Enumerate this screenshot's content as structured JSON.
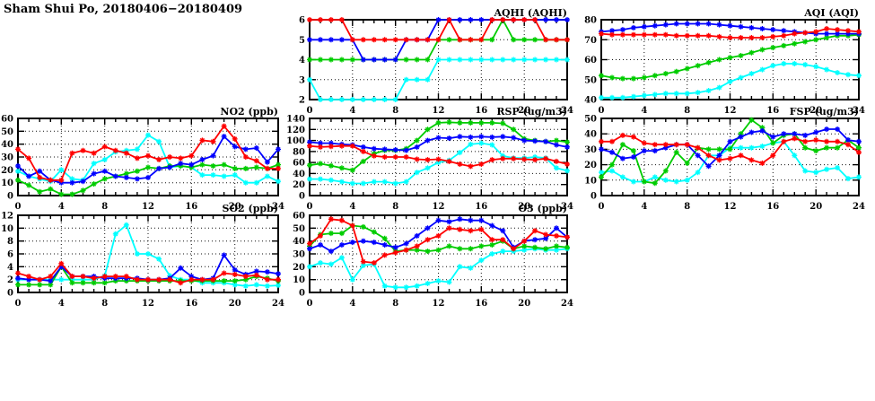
{
  "page_title": "Sham Shui Po, 20180406−20180409",
  "chart_data": [
    {
      "id": "aqhi",
      "type": "line",
      "title": "AQHI (AQHI)",
      "xlabel": "",
      "ylabel": "",
      "grid": true,
      "legend": "none",
      "xlim": [
        0,
        24
      ],
      "x_ticks": [
        0,
        4,
        8,
        12,
        16,
        20,
        24
      ],
      "ylim": [
        2,
        6
      ],
      "y_ticks": [
        2,
        3,
        4,
        5,
        6
      ],
      "x_start": 0,
      "x_step": 1,
      "series": [
        {
          "name": "red",
          "color": "#ff0000",
          "values": [
            6,
            6,
            6,
            6,
            5,
            5,
            5,
            5,
            5,
            5,
            5,
            5,
            5,
            6,
            5,
            5,
            5,
            6,
            6,
            6,
            6,
            6,
            5,
            5,
            5
          ]
        },
        {
          "name": "blue",
          "color": "#0000ff",
          "values": [
            5,
            5,
            5,
            5,
            5,
            4,
            4,
            4,
            4,
            5,
            5,
            5,
            6,
            6,
            6,
            6,
            6,
            6,
            6,
            6,
            6,
            6,
            6,
            6,
            6
          ]
        },
        {
          "name": "green",
          "color": "#00cc00",
          "values": [
            4,
            4,
            4,
            4,
            4,
            4,
            4,
            4,
            4,
            4,
            4,
            4,
            5,
            5,
            5,
            5,
            5,
            5,
            6,
            5,
            5,
            5,
            5,
            5,
            5
          ]
        },
        {
          "name": "cyan",
          "color": "#00ffff",
          "values": [
            3,
            2,
            2,
            2,
            2,
            2,
            2,
            2,
            2,
            3,
            3,
            3,
            4,
            4,
            4,
            4,
            4,
            4,
            4,
            4,
            4,
            4,
            4,
            4,
            4
          ]
        }
      ]
    },
    {
      "id": "aqi",
      "type": "line",
      "title": "AQI (AQI)",
      "xlabel": "",
      "ylabel": "",
      "grid": true,
      "legend": "none",
      "xlim": [
        0,
        24
      ],
      "x_ticks": [
        0,
        4,
        8,
        12,
        16,
        20,
        24
      ],
      "ylim": [
        40,
        80
      ],
      "y_ticks": [
        40,
        50,
        60,
        70,
        80
      ],
      "x_start": 0,
      "x_step": 1,
      "series": [
        {
          "name": "red",
          "color": "#ff0000",
          "values": [
            73,
            72.5,
            72.5,
            72.5,
            72.5,
            72.5,
            72.5,
            72,
            72,
            72,
            72,
            71.5,
            71,
            71,
            71,
            71,
            71.5,
            72,
            73,
            73.5,
            74,
            75.5,
            75,
            74.5,
            74
          ]
        },
        {
          "name": "blue",
          "color": "#0000ff",
          "values": [
            74,
            74.5,
            75,
            76,
            76.5,
            77,
            77.5,
            78,
            78,
            78,
            78,
            77.5,
            77,
            76.5,
            76,
            75.5,
            75,
            74.5,
            74,
            73.5,
            73,
            73,
            73,
            73,
            73
          ]
        },
        {
          "name": "green",
          "color": "#00cc00",
          "values": [
            52,
            51,
            50.5,
            50.5,
            51,
            52,
            53,
            54,
            55.5,
            57,
            58.5,
            60,
            61,
            62,
            63.5,
            65,
            66,
            67,
            68,
            69,
            70,
            71,
            72,
            72,
            72.5
          ]
        },
        {
          "name": "cyan",
          "color": "#00ffff",
          "values": [
            41,
            41,
            41,
            41.5,
            42,
            42.5,
            43,
            43,
            43,
            43.5,
            44.5,
            46,
            49,
            51,
            53,
            55,
            57,
            58,
            58,
            57.5,
            56.5,
            55,
            53.5,
            52.5,
            52
          ]
        }
      ]
    },
    {
      "id": "no2",
      "type": "line",
      "title": "NO2 (ppb)",
      "xlabel": "",
      "ylabel": "",
      "grid": true,
      "legend": "none",
      "xlim": [
        0,
        24
      ],
      "x_ticks": [
        0,
        4,
        8,
        12,
        16,
        20,
        24
      ],
      "ylim": [
        0,
        60
      ],
      "y_ticks": [
        0,
        10,
        20,
        30,
        40,
        50,
        60
      ],
      "x_start": 0,
      "x_step": 1,
      "series": [
        {
          "name": "red",
          "color": "#ff0000",
          "values": [
            36,
            29,
            14,
            12,
            12,
            33,
            35,
            33,
            38,
            35,
            33,
            29,
            31,
            28,
            30,
            29,
            31,
            43,
            42,
            54,
            44,
            30,
            27,
            21,
            21
          ]
        },
        {
          "name": "blue",
          "color": "#0000ff",
          "values": [
            23,
            15,
            19,
            12,
            10,
            10,
            11,
            17,
            19,
            15,
            14,
            13,
            14,
            21,
            22,
            25,
            24,
            28,
            31,
            46,
            38,
            36,
            37,
            26,
            36
          ]
        },
        {
          "name": "green",
          "color": "#00cc00",
          "values": [
            12,
            8,
            3,
            5,
            1,
            1,
            4,
            9,
            13,
            15,
            17,
            19,
            22,
            21,
            23,
            23,
            22,
            24,
            23,
            24,
            21,
            21,
            22,
            21,
            24
          ]
        },
        {
          "name": "cyan",
          "color": "#00ffff",
          "values": [
            19,
            15,
            13,
            11,
            20,
            13,
            12,
            25,
            28,
            34,
            35,
            36,
            47,
            42,
            22,
            23,
            22,
            16,
            16,
            15,
            16,
            10,
            10,
            15,
            11
          ]
        }
      ]
    },
    {
      "id": "rsp",
      "type": "line",
      "title": "RSP (ug/m3)",
      "xlabel": "",
      "ylabel": "",
      "grid": true,
      "legend": "none",
      "xlim": [
        0,
        24
      ],
      "x_ticks": [
        0,
        4,
        8,
        12,
        16,
        20,
        24
      ],
      "ylim": [
        0,
        140
      ],
      "y_ticks": [
        0,
        20,
        40,
        60,
        80,
        100,
        120,
        140
      ],
      "x_start": 0,
      "x_step": 1,
      "series": [
        {
          "name": "red",
          "color": "#ff0000",
          "values": [
            90,
            88,
            89,
            90,
            90,
            80,
            72,
            70,
            70,
            70,
            66,
            65,
            66,
            62,
            57,
            53,
            57,
            65,
            67,
            67,
            66,
            65,
            67,
            62,
            57
          ]
        },
        {
          "name": "blue",
          "color": "#0000ff",
          "values": [
            97,
            95,
            95,
            93,
            92,
            88,
            85,
            84,
            83,
            82,
            88,
            100,
            105,
            104,
            107,
            106,
            107,
            106,
            107,
            105,
            100,
            99,
            98,
            92,
            88
          ]
        },
        {
          "name": "green",
          "color": "#00cc00",
          "values": [
            55,
            58,
            54,
            50,
            46,
            62,
            76,
            82,
            82,
            85,
            100,
            120,
            132,
            133,
            132,
            132,
            132,
            132,
            131,
            120,
            103,
            100,
            98,
            100,
            97
          ]
        },
        {
          "name": "cyan",
          "color": "#00ffff",
          "values": [
            30,
            30,
            28,
            25,
            22,
            22,
            25,
            25,
            22,
            25,
            42,
            50,
            60,
            64,
            78,
            93,
            95,
            92,
            72,
            68,
            68,
            70,
            68,
            50,
            45
          ]
        }
      ]
    },
    {
      "id": "fsp",
      "type": "line",
      "title": "FSP (ug/m3)",
      "xlabel": "",
      "ylabel": "",
      "grid": true,
      "legend": "none",
      "xlim": [
        0,
        24
      ],
      "x_ticks": [
        0,
        4,
        8,
        12,
        16,
        20,
        24
      ],
      "ylim": [
        0,
        50
      ],
      "y_ticks": [
        0,
        10,
        20,
        30,
        40,
        50
      ],
      "x_start": 0,
      "x_step": 1,
      "series": [
        {
          "name": "red",
          "color": "#ff0000",
          "values": [
            35,
            35,
            39,
            38,
            34,
            33,
            33,
            33,
            33,
            31,
            26,
            23,
            24,
            26,
            23,
            21,
            26,
            35,
            37,
            35,
            36,
            35,
            35,
            33,
            28
          ]
        },
        {
          "name": "blue",
          "color": "#0000ff",
          "values": [
            30,
            28,
            24,
            25,
            29,
            29,
            31,
            33,
            33,
            26,
            19,
            26,
            35,
            38,
            41,
            42,
            38,
            40,
            40,
            39,
            41,
            43,
            43,
            36,
            35
          ]
        },
        {
          "name": "green",
          "color": "#00cc00",
          "values": [
            12,
            20,
            33,
            29,
            9,
            8,
            16,
            28,
            21,
            31,
            30,
            30,
            30,
            40,
            49,
            44,
            34,
            39,
            40,
            31,
            29,
            31,
            31,
            36,
            31
          ]
        },
        {
          "name": "cyan",
          "color": "#00ffff",
          "values": [
            15,
            16,
            12,
            9,
            9,
            12,
            10,
            9,
            10,
            15,
            26,
            26,
            31,
            31,
            31,
            32,
            34,
            35,
            26,
            16,
            15,
            17,
            18,
            11,
            12
          ]
        }
      ]
    },
    {
      "id": "so2",
      "type": "line",
      "title": "SO2 (ppb)",
      "xlabel": "",
      "ylabel": "",
      "grid": true,
      "legend": "none",
      "xlim": [
        0,
        24
      ],
      "x_ticks": [
        0,
        4,
        8,
        12,
        16,
        20,
        24
      ],
      "ylim": [
        0,
        12
      ],
      "y_ticks": [
        0,
        2,
        4,
        6,
        8,
        10,
        12
      ],
      "x_start": 0,
      "x_step": 1,
      "series": [
        {
          "name": "red",
          "color": "#ff0000",
          "values": [
            3,
            2.5,
            2,
            2.5,
            4.5,
            2.5,
            2.5,
            2.2,
            2.5,
            2.5,
            2.5,
            2,
            2,
            2,
            2,
            1.5,
            2,
            2,
            2,
            3,
            2.8,
            2.5,
            2.7,
            2,
            2
          ]
        },
        {
          "name": "blue",
          "color": "#0000ff",
          "values": [
            2.2,
            2,
            2,
            1.8,
            4,
            2.5,
            2.5,
            2.5,
            2.2,
            2.2,
            2.2,
            2.2,
            2,
            2,
            2.2,
            3.8,
            2.5,
            2,
            2.2,
            5.8,
            3.5,
            2.8,
            3.3,
            3.2,
            2.9
          ]
        },
        {
          "name": "green",
          "color": "#00cc00",
          "values": [
            1.2,
            1.2,
            1.2,
            1.2,
            4,
            1.5,
            1.5,
            1.5,
            1.5,
            1.8,
            1.8,
            1.8,
            1.8,
            1.8,
            1.8,
            1.8,
            1.8,
            1.8,
            1.8,
            1.8,
            1.8,
            2,
            2.5,
            2.2,
            1.8
          ]
        },
        {
          "name": "cyan",
          "color": "#00ffff",
          "values": [
            2,
            2,
            2,
            2,
            2,
            2,
            2,
            2,
            2.6,
            9.1,
            10.5,
            6,
            6,
            5.2,
            2.6,
            2,
            2,
            1.5,
            1.5,
            1.5,
            1.2,
            1,
            1.2,
            1,
            1.1
          ]
        }
      ]
    },
    {
      "id": "o3",
      "type": "line",
      "title": "O3 (ppb)",
      "xlabel": "",
      "ylabel": "",
      "grid": true,
      "legend": "none",
      "xlim": [
        0,
        24
      ],
      "x_ticks": [
        0,
        4,
        8,
        12,
        16,
        20,
        24
      ],
      "ylim": [
        0,
        60
      ],
      "y_ticks": [
        0,
        10,
        20,
        30,
        40,
        50,
        60
      ],
      "x_start": 0,
      "x_step": 1,
      "series": [
        {
          "name": "red",
          "color": "#ff0000",
          "values": [
            38,
            44,
            57,
            56,
            52,
            24,
            23,
            29,
            31,
            33,
            36,
            41,
            44,
            50,
            49,
            48,
            49,
            41,
            41,
            34,
            40,
            48,
            45,
            44,
            43
          ]
        },
        {
          "name": "blue",
          "color": "#0000ff",
          "values": [
            34,
            37,
            32,
            37,
            39,
            40,
            39,
            37,
            35,
            38,
            44,
            50,
            56,
            55,
            57,
            56,
            56,
            52,
            48,
            35,
            40,
            41,
            42,
            50,
            43
          ]
        },
        {
          "name": "green",
          "color": "#00cc00",
          "values": [
            36,
            45,
            46,
            46,
            52,
            51,
            47,
            42,
            32,
            33,
            33,
            32,
            33,
            36,
            34,
            34,
            36,
            37,
            40,
            34,
            36,
            35,
            34,
            36,
            35
          ]
        },
        {
          "name": "cyan",
          "color": "#00ffff",
          "values": [
            20,
            23,
            22,
            27,
            10,
            21,
            22,
            5,
            4,
            4,
            5,
            7,
            9,
            8,
            20,
            19,
            25,
            30,
            32,
            32,
            33,
            34,
            33,
            33,
            34
          ]
        }
      ]
    }
  ]
}
